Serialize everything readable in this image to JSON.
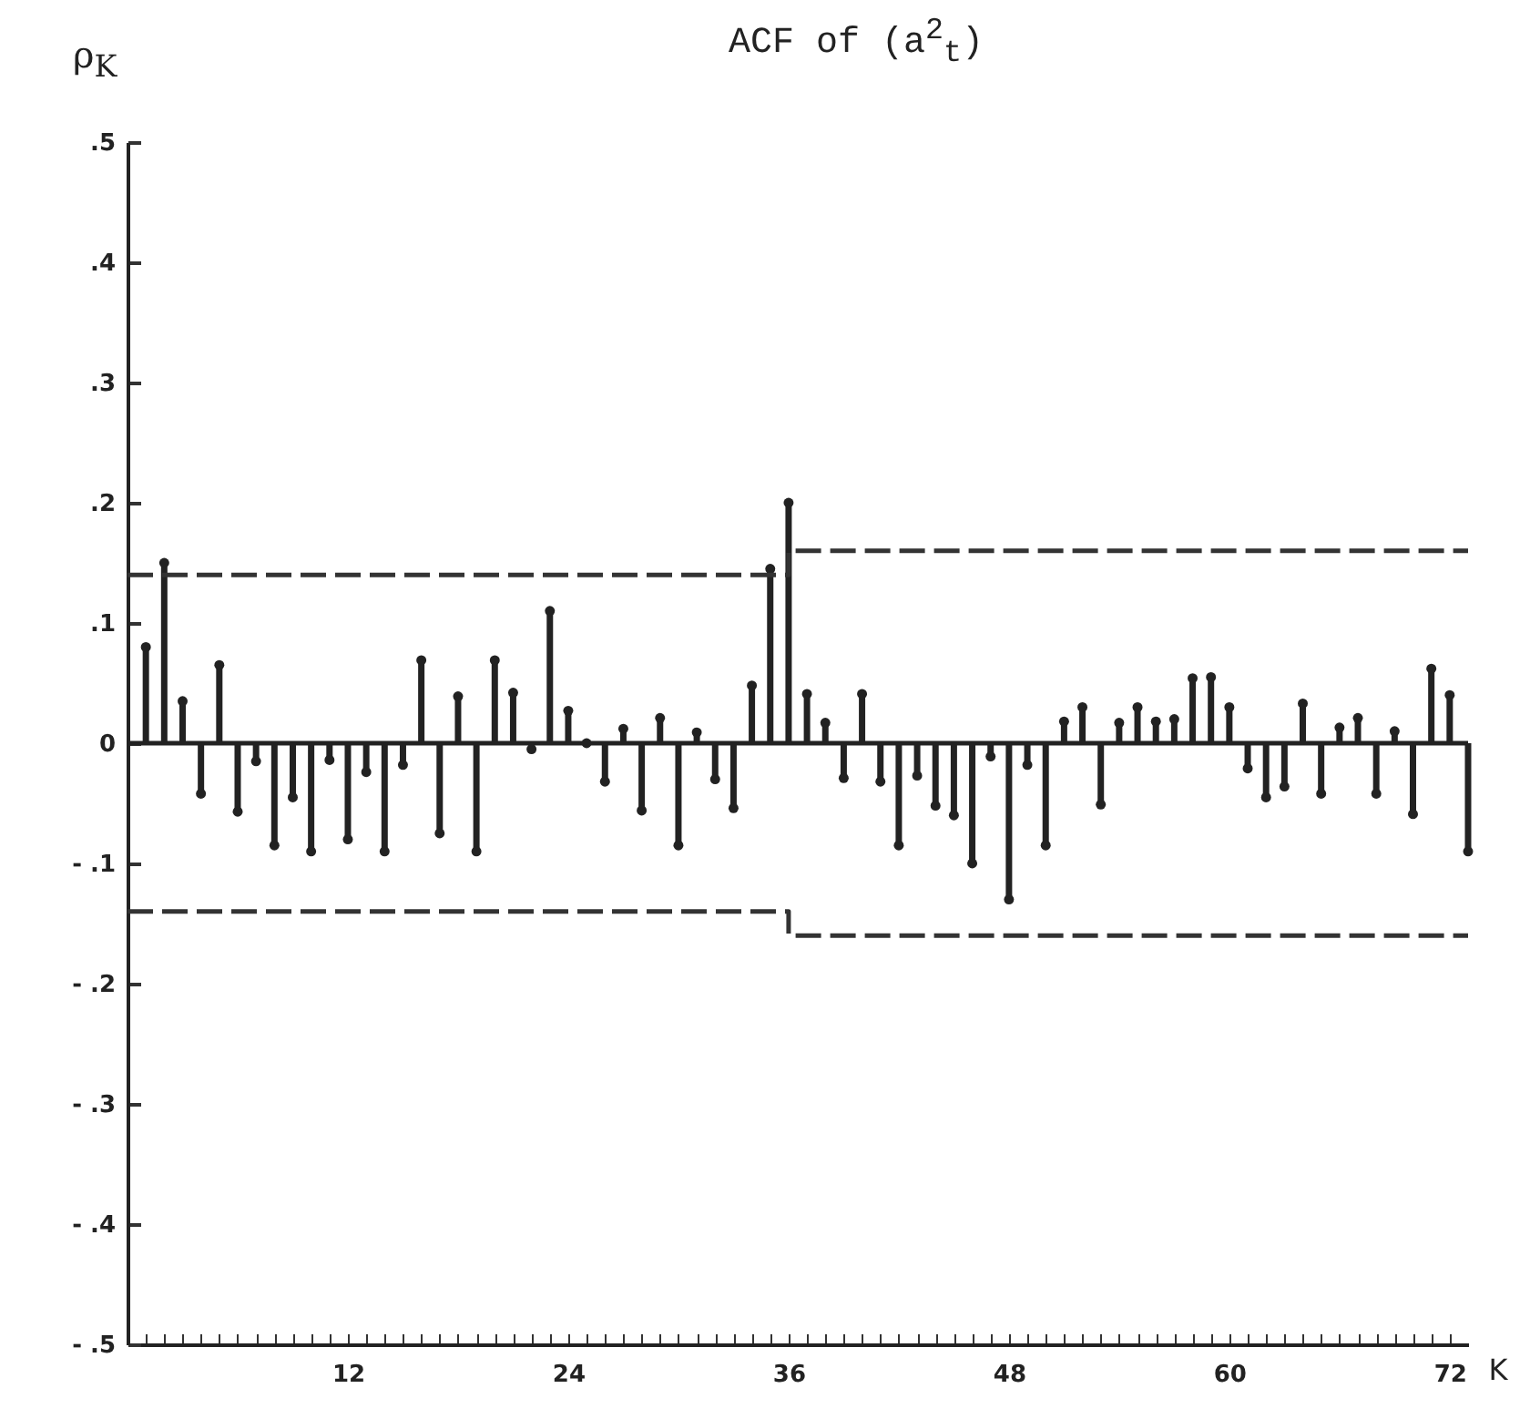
{
  "chart_data": {
    "type": "lollipop",
    "title": "ACF of (a$^{2}$$_{t}$)",
    "ylabel": "ρ$_{K}$",
    "xlabel": "K",
    "x": [
      1,
      2,
      3,
      4,
      5,
      6,
      7,
      8,
      9,
      10,
      11,
      12,
      13,
      14,
      15,
      16,
      17,
      18,
      19,
      20,
      21,
      22,
      23,
      24,
      25,
      26,
      27,
      28,
      29,
      30,
      31,
      32,
      33,
      34,
      35,
      36,
      37,
      38,
      39,
      40,
      41,
      42,
      43,
      44,
      45,
      46,
      47,
      48,
      49,
      50,
      51,
      52,
      53,
      54,
      55,
      56,
      57,
      58,
      59,
      60,
      61,
      62,
      63,
      64,
      65,
      66,
      67,
      68,
      69,
      70,
      71,
      72,
      73
    ],
    "series": [
      {
        "color": "#222222",
        "marker": "circle",
        "values": [
          0.08,
          0.15,
          0.035,
          -0.042,
          0.065,
          -0.057,
          -0.015,
          -0.085,
          -0.045,
          -0.09,
          -0.014,
          -0.08,
          -0.024,
          -0.09,
          -0.018,
          0.069,
          -0.075,
          0.039,
          -0.09,
          0.069,
          0.042,
          -0.005,
          0.11,
          0.027,
          0,
          -0.032,
          0.012,
          -0.056,
          0.021,
          -0.085,
          0.009,
          -0.03,
          -0.054,
          0.048,
          0.145,
          0.2,
          0.041,
          0.017,
          -0.029,
          0.041,
          -0.032,
          -0.085,
          -0.027,
          -0.052,
          -0.06,
          -0.1,
          -0.011,
          -0.13,
          -0.018,
          -0.085,
          0.018,
          0.03,
          -0.051,
          0.017,
          0.03,
          0.018,
          0.02,
          0.054,
          0.055,
          0.03,
          -0.021,
          -0.045,
          -0.036,
          0.033,
          -0.042,
          0.013,
          0.021,
          -0.042,
          0.01,
          -0.059,
          0.062,
          0.04,
          -0.09
        ]
      },
      {
        "type": "line",
        "color": "#333333",
        "line_style": "dashed",
        "x": [
          0,
          36,
          36,
          73
        ],
        "values": [
          0.14,
          0.14,
          0.16,
          0.16
        ]
      },
      {
        "type": "line",
        "color": "#333333",
        "line_style": "dashed",
        "x": [
          0,
          36,
          36,
          73
        ],
        "values": [
          -0.14,
          -0.14,
          -0.16,
          -0.16
        ]
      }
    ],
    "xlim": [
      0,
      73
    ],
    "xticks": [
      {
        "value": 1,
        "label": null
      },
      {
        "value": 2,
        "label": null
      },
      {
        "value": 3,
        "label": null
      },
      {
        "value": 4,
        "label": null
      },
      {
        "value": 5,
        "label": null
      },
      {
        "value": 6,
        "label": null
      },
      {
        "value": 7,
        "label": null
      },
      {
        "value": 8,
        "label": null
      },
      {
        "value": 9,
        "label": null
      },
      {
        "value": 10,
        "label": null
      },
      {
        "value": 11,
        "label": null
      },
      12,
      {
        "value": 13,
        "label": null
      },
      {
        "value": 14,
        "label": null
      },
      {
        "value": 15,
        "label": null
      },
      {
        "value": 16,
        "label": null
      },
      {
        "value": 17,
        "label": null
      },
      {
        "value": 18,
        "label": null
      },
      {
        "value": 19,
        "label": null
      },
      {
        "value": 20,
        "label": null
      },
      {
        "value": 21,
        "label": null
      },
      {
        "value": 22,
        "label": null
      },
      {
        "value": 23,
        "label": null
      },
      24,
      {
        "value": 25,
        "label": null
      },
      {
        "value": 26,
        "label": null
      },
      {
        "value": 27,
        "label": null
      },
      {
        "value": 28,
        "label": null
      },
      {
        "value": 29,
        "label": null
      },
      {
        "value": 30,
        "label": null
      },
      {
        "value": 31,
        "label": null
      },
      {
        "value": 32,
        "label": null
      },
      {
        "value": 33,
        "label": null
      },
      {
        "value": 34,
        "label": null
      },
      {
        "value": 35,
        "label": null
      },
      36,
      {
        "value": 37,
        "label": null
      },
      {
        "value": 38,
        "label": null
      },
      {
        "value": 39,
        "label": null
      },
      {
        "value": 40,
        "label": null
      },
      {
        "value": 41,
        "label": null
      },
      {
        "value": 42,
        "label": null
      },
      {
        "value": 43,
        "label": null
      },
      {
        "value": 44,
        "label": null
      },
      {
        "value": 45,
        "label": null
      },
      {
        "value": 46,
        "label": null
      },
      {
        "value": 47,
        "label": null
      },
      48,
      {
        "value": 49,
        "label": null
      },
      {
        "value": 50,
        "label": null
      },
      {
        "value": 51,
        "label": null
      },
      {
        "value": 52,
        "label": null
      },
      {
        "value": 53,
        "label": null
      },
      {
        "value": 54,
        "label": null
      },
      {
        "value": 55,
        "label": null
      },
      {
        "value": 56,
        "label": null
      },
      {
        "value": 57,
        "label": null
      },
      {
        "value": 58,
        "label": null
      },
      {
        "value": 59,
        "label": null
      },
      60,
      {
        "value": 61,
        "label": null
      },
      {
        "value": 62,
        "label": null
      },
      {
        "value": 63,
        "label": null
      },
      {
        "value": 64,
        "label": null
      },
      {
        "value": 65,
        "label": null
      },
      {
        "value": 66,
        "label": null
      },
      {
        "value": 67,
        "label": null
      },
      {
        "value": 68,
        "label": null
      },
      {
        "value": 69,
        "label": null
      },
      {
        "value": 70,
        "label": null
      },
      {
        "value": 71,
        "label": null
      },
      72
    ],
    "ylim": [
      -0.5,
      0.5
    ],
    "yticks": [
      {
        "value": 0.5,
        "label": ".5"
      },
      {
        "value": 0.4,
        "label": ".4"
      },
      {
        "value": 0.3,
        "label": ".3"
      },
      {
        "value": 0.2,
        "label": ".2"
      },
      {
        "value": 0.1,
        "label": ".1"
      },
      0,
      {
        "value": -0.1,
        "label": "- .1"
      },
      {
        "value": -0.2,
        "label": "- .2"
      },
      {
        "value": -0.3,
        "label": "- .3"
      },
      {
        "value": -0.4,
        "label": "- .4"
      },
      {
        "value": -0.5,
        "label": "- .5"
      }
    ]
  }
}
